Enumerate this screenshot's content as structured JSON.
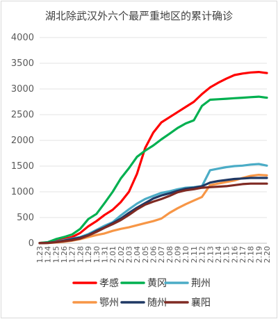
{
  "chart_data": {
    "type": "line",
    "title": "湖北除武汉外六个最严重地区的累计确诊",
    "xlabel": "",
    "ylabel": "",
    "ylim": [
      0,
      4000
    ],
    "yticks": [
      0,
      500,
      1000,
      1500,
      2000,
      2500,
      3000,
      3500,
      4000
    ],
    "grid": "horizontal",
    "legend_position": "bottom",
    "categories": [
      "1.23",
      "1.24",
      "1.25",
      "1.26",
      "1.27",
      "1.28",
      "1.29",
      "1.30",
      "1.31",
      "2.01",
      "2.02",
      "2.03",
      "2.04",
      "2.05",
      "2.06",
      "2.07",
      "2.08",
      "2.09",
      "2.10",
      "2.11",
      "2.12",
      "2.13",
      "2.14",
      "2.15",
      "2.16",
      "2.17",
      "2.18",
      "2.19",
      "2.20"
    ],
    "series": [
      {
        "name": "孝感",
        "color": "#ff0000",
        "values": [
          5,
          15,
          45,
          80,
          120,
          200,
          330,
          430,
          550,
          650,
          800,
          1000,
          1350,
          1850,
          2150,
          2350,
          2450,
          2550,
          2650,
          2750,
          2900,
          3030,
          3120,
          3200,
          3270,
          3300,
          3320,
          3330,
          3310
        ]
      },
      {
        "name": "黄冈",
        "color": "#00b050",
        "values": [
          5,
          20,
          80,
          120,
          170,
          280,
          470,
          570,
          780,
          1000,
          1260,
          1460,
          1680,
          1800,
          1900,
          2020,
          2130,
          2240,
          2330,
          2390,
          2670,
          2790,
          2800,
          2810,
          2820,
          2830,
          2840,
          2850,
          2830
        ]
      },
      {
        "name": "荆州",
        "color": "#4bacc6",
        "values": [
          3,
          8,
          30,
          60,
          90,
          120,
          180,
          260,
          340,
          410,
          540,
          660,
          770,
          860,
          920,
          980,
          1010,
          1050,
          1080,
          1090,
          1110,
          1420,
          1450,
          1480,
          1500,
          1510,
          1530,
          1540,
          1510
        ]
      },
      {
        "name": "鄂州",
        "color": "#f79646",
        "values": [
          3,
          5,
          15,
          30,
          50,
          80,
          120,
          160,
          190,
          240,
          280,
          310,
          350,
          390,
          430,
          480,
          590,
          680,
          760,
          830,
          900,
          1130,
          1160,
          1190,
          1220,
          1270,
          1310,
          1330,
          1320
        ]
      },
      {
        "name": "随州",
        "color": "#1f3864",
        "values": [
          3,
          8,
          25,
          50,
          80,
          110,
          160,
          240,
          310,
          390,
          480,
          590,
          690,
          780,
          870,
          930,
          970,
          1020,
          1060,
          1080,
          1110,
          1180,
          1210,
          1230,
          1250,
          1260,
          1270,
          1270,
          1270
        ]
      },
      {
        "name": "襄阳",
        "color": "#7f2a23",
        "values": [
          2,
          5,
          20,
          40,
          60,
          90,
          150,
          220,
          300,
          370,
          450,
          550,
          660,
          750,
          810,
          860,
          920,
          990,
          1030,
          1050,
          1080,
          1090,
          1100,
          1110,
          1130,
          1150,
          1160,
          1160,
          1160
        ]
      }
    ]
  }
}
